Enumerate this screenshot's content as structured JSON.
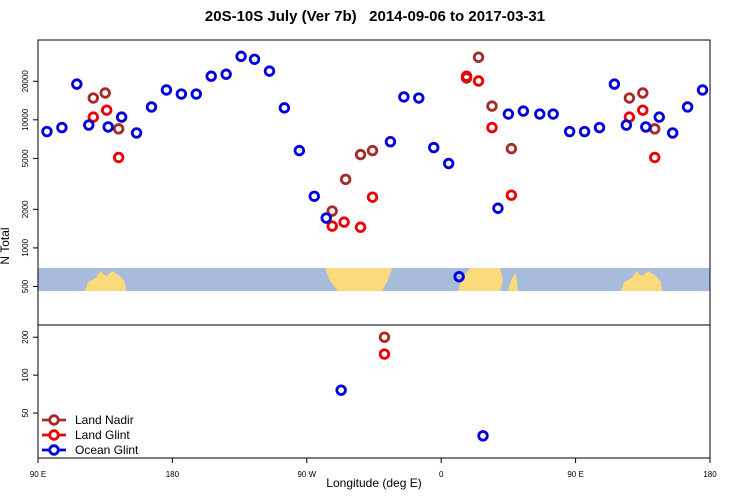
{
  "chart_data": [
    {
      "type": "scatter",
      "title": "20S-10S July (Ver 7b)   2014-09-06 to 2017-03-31",
      "ylabel": "N Total",
      "ylog": true,
      "xlim": [
        90,
        540
      ],
      "ylim": [
        250,
        42000
      ],
      "yticks": [
        500,
        1000,
        2000,
        5000,
        10000,
        20000
      ],
      "series": [
        {
          "name": "Land Nadir",
          "color": "#a52a2a",
          "x": [
            127,
            135,
            144,
            287,
            296,
            306,
            314,
            377,
            385,
            394,
            407,
            486,
            495,
            503
          ],
          "values": [
            14800,
            16200,
            8500,
            1940,
            3430,
            5350,
            5750,
            21200,
            30800,
            12800,
            5960,
            14800,
            16200,
            8500
          ]
        },
        {
          "name": "Land Glint",
          "color": "#ee0000",
          "x": [
            127,
            136,
            144,
            287,
            295,
            306,
            314,
            377,
            385,
            394,
            407,
            486,
            495,
            503
          ],
          "values": [
            10500,
            11900,
            5080,
            1480,
            1590,
            1450,
            2490,
            21900,
            20100,
            8700,
            2580,
            10500,
            11900,
            5080
          ]
        },
        {
          "name": "Ocean Glint",
          "color": "#0000dd",
          "x": [
            96,
            106,
            116,
            124,
            137,
            146,
            156,
            166,
            176,
            186,
            196,
            206,
            216,
            226,
            235,
            245,
            255,
            265,
            275,
            283,
            326,
            335,
            345,
            355,
            365,
            372,
            398,
            405,
            415,
            426,
            435,
            446,
            456,
            466,
            476,
            484,
            497,
            506,
            515,
            525,
            535
          ],
          "values": [
            8100,
            8700,
            19000,
            9100,
            8800,
            10500,
            7900,
            12600,
            17100,
            15900,
            15900,
            21900,
            22700,
            31300,
            29700,
            24000,
            12400,
            5750,
            2530,
            1710,
            6750,
            15100,
            14800,
            6070,
            4560,
            596,
            2040,
            11100,
            11700,
            11100,
            11100,
            8100,
            8100,
            8700,
            19000,
            9100,
            8800,
            10500,
            7900,
            12600,
            17100
          ]
        }
      ]
    },
    {
      "type": "scatter",
      "xlabel": "Longitude (deg E)",
      "ylog": true,
      "xlim": [
        90,
        540
      ],
      "ylim": [
        22,
        250
      ],
      "xticks": [
        {
          "value": 90,
          "label": "90 E"
        },
        {
          "value": 180,
          "label": "180"
        },
        {
          "value": 270,
          "label": "90 W"
        },
        {
          "value": 360,
          "label": "0"
        },
        {
          "value": 450,
          "label": "90 E"
        },
        {
          "value": 540,
          "label": "180"
        }
      ],
      "yticks": [
        50,
        100,
        200
      ],
      "legend": "lower left",
      "series": [
        {
          "color": "#a52a2a",
          "x": [
            322
          ],
          "values": [
            200
          ]
        },
        {
          "color": "#ee0000",
          "x": [
            322
          ],
          "values": [
            147
          ]
        },
        {
          "color": "#0000dd",
          "x": [
            293,
            388
          ],
          "values": [
            76,
            33
          ]
        }
      ]
    }
  ]
}
